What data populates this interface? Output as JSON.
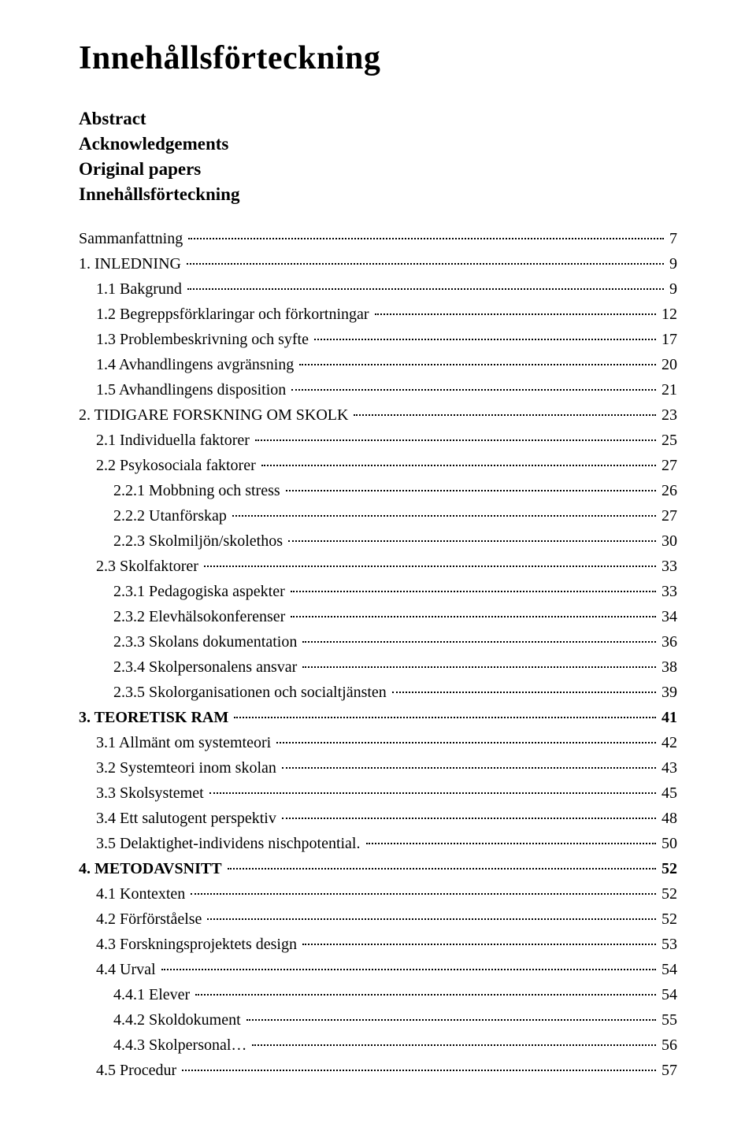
{
  "title": "Innehållsförteckning",
  "frontMatter": [
    "Abstract",
    "Acknowledgements",
    "Original papers",
    "Innehållsförteckning"
  ],
  "toc": [
    {
      "label": "Sammanfattning",
      "page": "7",
      "level": "lvl1-regular"
    },
    {
      "label": "1. INLEDNING",
      "page": "9",
      "level": "lvl1-regular"
    },
    {
      "label": "1.1 Bakgrund",
      "page": "9",
      "level": "lvl2"
    },
    {
      "label": "1.2 Begreppsförklaringar och förkortningar",
      "page": "12",
      "level": "lvl2"
    },
    {
      "label": "1.3 Problembeskrivning och syfte",
      "page": "17",
      "level": "lvl2"
    },
    {
      "label": "1.4 Avhandlingens avgränsning",
      "page": "20",
      "level": "lvl2"
    },
    {
      "label": "1.5 Avhandlingens disposition",
      "page": "21",
      "level": "lvl2"
    },
    {
      "label": "2. TIDIGARE FORSKNING OM SKOLK",
      "page": "23",
      "level": "lvl1-regular"
    },
    {
      "label": "2.1 Individuella faktorer",
      "page": "25",
      "level": "lvl2"
    },
    {
      "label": "2.2 Psykosociala faktorer",
      "page": "27",
      "level": "lvl2"
    },
    {
      "label": "2.2.1 Mobbning och stress",
      "page": "26",
      "level": "lvl3"
    },
    {
      "label": "2.2.2 Utanförskap",
      "page": "27",
      "level": "lvl3"
    },
    {
      "label": "2.2.3 Skolmiljön/skolethos",
      "page": "30",
      "level": "lvl3"
    },
    {
      "label": "2.3 Skolfaktorer",
      "page": "33",
      "level": "lvl2"
    },
    {
      "label": "2.3.1 Pedagogiska aspekter",
      "page": "33",
      "level": "lvl3"
    },
    {
      "label": "2.3.2 Elevhälsokonferenser",
      "page": "34",
      "level": "lvl3"
    },
    {
      "label": "2.3.3 Skolans dokumentation",
      "page": "36",
      "level": "lvl3"
    },
    {
      "label": "2.3.4 Skolpersonalens ansvar",
      "page": "38",
      "level": "lvl3"
    },
    {
      "label": "2.3.5 Skolorganisationen och socialtjänsten",
      "page": "39",
      "level": "lvl3"
    },
    {
      "label": "3. TEORETISK RAM",
      "page": "41",
      "level": "lvl1-bold"
    },
    {
      "label": "3.1 Allmänt om systemteori",
      "page": "42",
      "level": "lvl2"
    },
    {
      "label": "3.2 Systemteori inom skolan",
      "page": "43",
      "level": "lvl2"
    },
    {
      "label": "3.3 Skolsystemet",
      "page": "45",
      "level": "lvl2"
    },
    {
      "label": "3.4 Ett salutogent perspektiv",
      "page": "48",
      "level": "lvl2"
    },
    {
      "label": "3.5 Delaktighet-individens nischpotential.",
      "page": "50",
      "level": "lvl2"
    },
    {
      "label": "4. METODAVSNITT",
      "page": "52",
      "level": "lvl1-bold"
    },
    {
      "label": "4.1 Kontexten",
      "page": "52",
      "level": "lvl2"
    },
    {
      "label": "4.2 Förförståelse",
      "page": "52",
      "level": "lvl2"
    },
    {
      "label": "4.3 Forskningsprojektets design",
      "page": "53",
      "level": "lvl2"
    },
    {
      "label": "4.4 Urval",
      "page": "54",
      "level": "lvl2"
    },
    {
      "label": "4.4.1 Elever",
      "page": "54",
      "level": "lvl3"
    },
    {
      "label": "4.4.2 Skoldokument",
      "page": "55",
      "level": "lvl3"
    },
    {
      "label": "4.4.3 Skolpersonal…",
      "page": "56",
      "level": "lvl3"
    },
    {
      "label": "4.5 Procedur",
      "page": "57",
      "level": "lvl2"
    }
  ]
}
